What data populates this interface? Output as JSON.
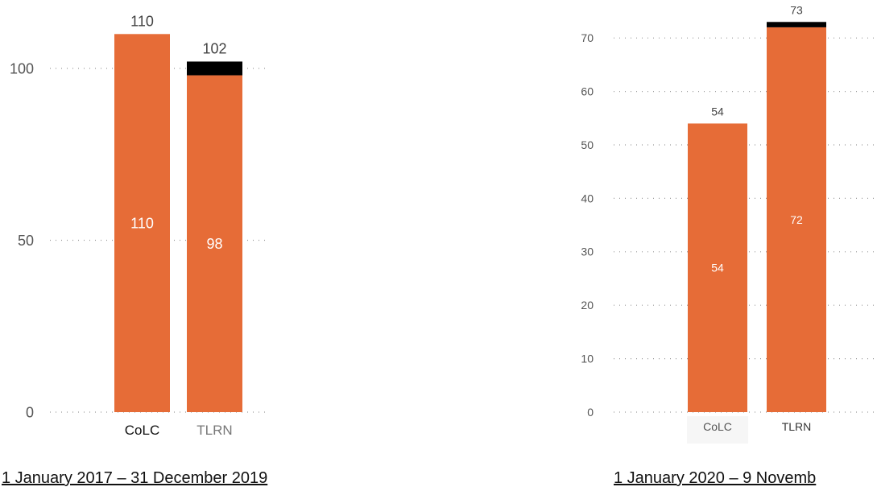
{
  "chart_data": [
    {
      "type": "bar",
      "stacked": true,
      "categories": [
        "CoLC",
        "TLRN"
      ],
      "series": [
        {
          "values": [
            110,
            98
          ],
          "color": "#E66C37"
        },
        {
          "values": [
            0,
            4
          ],
          "color": "#000000"
        }
      ],
      "totals": [
        110,
        102
      ],
      "segment_labels": [
        "110",
        "98"
      ],
      "total_labels": [
        "110",
        "102"
      ],
      "yticks": [
        0,
        50,
        100
      ],
      "ylim": [
        0,
        110
      ],
      "grid": true,
      "caption": "1 January 2017 – 31 December 2019"
    },
    {
      "type": "bar",
      "stacked": true,
      "categories": [
        "CoLC",
        "TLRN"
      ],
      "series": [
        {
          "values": [
            54,
            72
          ],
          "color": "#E66C37"
        },
        {
          "values": [
            0,
            1
          ],
          "color": "#000000"
        }
      ],
      "totals": [
        54,
        73
      ],
      "segment_labels": [
        "54",
        "72"
      ],
      "total_labels": [
        "54",
        "73"
      ],
      "yticks": [
        0,
        10,
        20,
        30,
        40,
        50,
        60,
        70
      ],
      "ylim": [
        0,
        73
      ],
      "grid": true,
      "caption": "1 January 2020 – 9 Novemb"
    }
  ]
}
